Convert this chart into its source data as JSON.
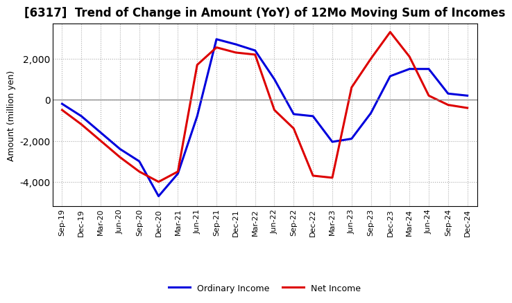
{
  "title": "[6317]  Trend of Change in Amount (YoY) of 12Mo Moving Sum of Incomes",
  "ylabel": "Amount (million yen)",
  "x_labels": [
    "Sep-19",
    "Dec-19",
    "Mar-20",
    "Jun-20",
    "Sep-20",
    "Dec-20",
    "Mar-21",
    "Jun-21",
    "Sep-21",
    "Dec-21",
    "Mar-22",
    "Jun-22",
    "Sep-22",
    "Dec-22",
    "Mar-23",
    "Jun-23",
    "Sep-23",
    "Dec-23",
    "Mar-24",
    "Jun-24",
    "Sep-24",
    "Dec-24"
  ],
  "ordinary_income": [
    -200,
    -800,
    -1600,
    -2400,
    -3000,
    -4700,
    -3600,
    -800,
    2950,
    2700,
    2400,
    1000,
    -700,
    -800,
    -2050,
    -1900,
    -650,
    1150,
    1500,
    1500,
    300,
    200
  ],
  "net_income": [
    -500,
    -1200,
    -2000,
    -2800,
    -3500,
    -4000,
    -3500,
    1700,
    2550,
    2300,
    2200,
    -500,
    -1400,
    -3700,
    -3800,
    600,
    2000,
    3300,
    2100,
    200,
    -250,
    -400
  ],
  "ordinary_color": "#0000dd",
  "net_color": "#dd0000",
  "ylim_min": -5200,
  "ylim_max": 3700,
  "yticks": [
    -4000,
    -2000,
    0,
    2000
  ],
  "background_color": "#ffffff",
  "grid_color": "#aaaaaa",
  "line_width": 2.2,
  "title_fontsize": 12,
  "label_fontsize": 9,
  "tick_fontsize": 8
}
